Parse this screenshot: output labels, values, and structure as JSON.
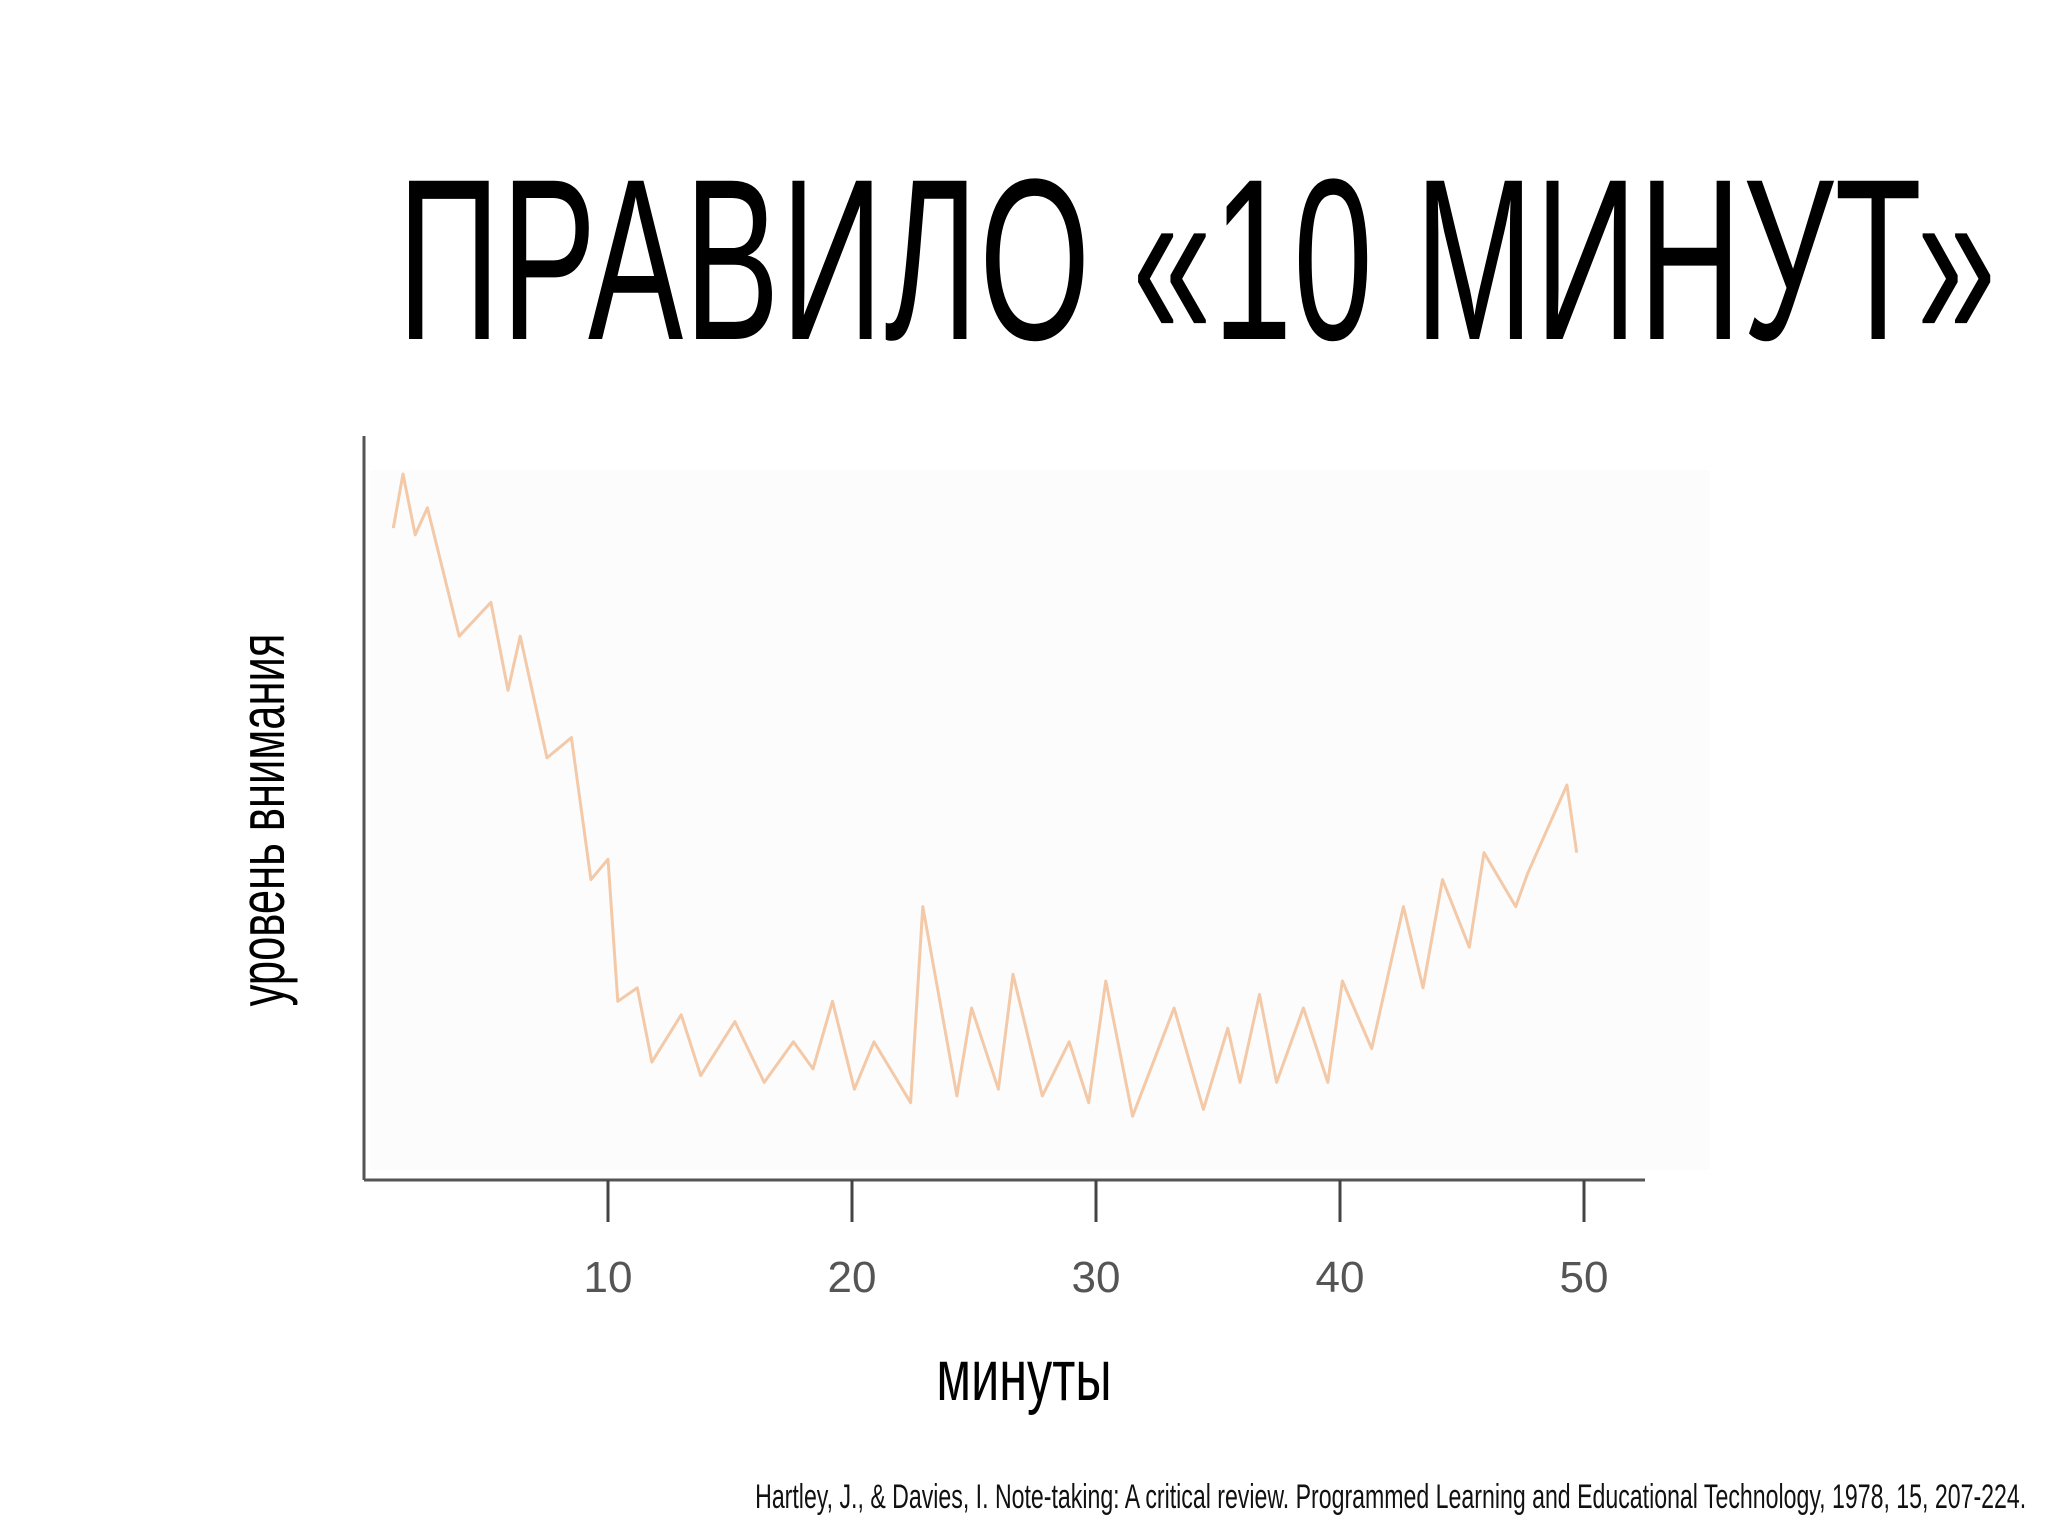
{
  "title": "ПРАВИЛО «10 МИНУТ»",
  "citation": "Hartley, J., & Davies, I. Note-taking: A critical review.  Programmed Learning and Educational Technology, 1978, 15, 207-224.",
  "chart_data": {
    "type": "line",
    "xlabel": "минуты",
    "ylabel": "уровень внимания",
    "xlim": [
      0,
      52.5
    ],
    "ylim": [
      0,
      100
    ],
    "xticks": [
      10,
      20,
      30,
      40,
      50
    ],
    "y_tick_labels": false,
    "line_color": "#f3c9a8",
    "series": [
      {
        "x": [
          1.2,
          1.6,
          2.1,
          2.6,
          3.9,
          5.2,
          5.9,
          6.4,
          7.5,
          8.5,
          9.3,
          10.0,
          10.4,
          11.2,
          11.8,
          13.0,
          13.8,
          15.2,
          16.4,
          17.6,
          18.4,
          19.2,
          20.1,
          20.9,
          22.4,
          22.9,
          24.3,
          24.9,
          26.0,
          26.6,
          27.8,
          28.9,
          29.7,
          30.4,
          31.5,
          33.2,
          34.4,
          35.4,
          35.9,
          36.7,
          37.4,
          38.5,
          39.5,
          40.1,
          41.3,
          42.6,
          43.4,
          44.2,
          45.3,
          45.9,
          47.2,
          47.7,
          49.3,
          49.7
        ],
        "y": [
          92,
          100,
          91,
          95,
          76,
          81,
          68,
          76,
          58,
          61,
          40,
          43,
          22,
          24,
          13,
          20,
          11,
          19,
          10,
          16,
          12,
          22,
          9,
          16,
          7,
          36,
          8,
          21,
          9,
          26,
          8,
          16,
          7,
          25,
          5,
          21,
          6,
          18,
          10,
          23,
          10,
          21,
          10,
          25,
          15,
          36,
          24,
          40,
          30,
          44,
          36,
          41,
          54,
          44
        ]
      }
    ]
  }
}
